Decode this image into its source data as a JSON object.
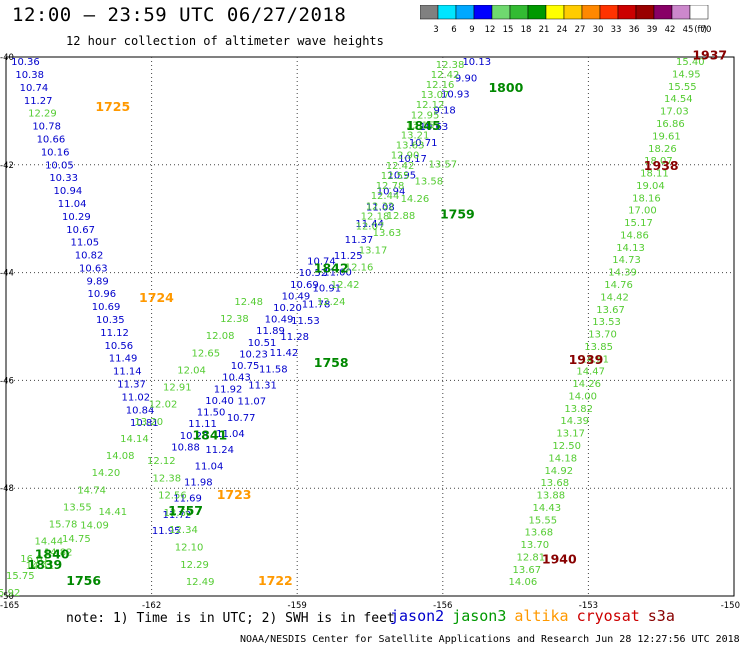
{
  "header": {
    "title": "12:00 – 23:59 UTC 06/27/2018",
    "subtitle": "12 hour collection of altimeter wave heights"
  },
  "colorbar": {
    "labels": [
      "3",
      "6",
      "9",
      "12",
      "15",
      "18",
      "21",
      "24",
      "27",
      "30",
      "33",
      "36",
      "39",
      "42",
      "45",
      "70"
    ],
    "unit": "(ft)",
    "colors": [
      "#808080",
      "#00e5ff",
      "#00a8ff",
      "#0000ff",
      "#6fd96f",
      "#33bb33",
      "#009900",
      "#ffff00",
      "#ffcc00",
      "#ff8800",
      "#ff3300",
      "#cc0000",
      "#990000",
      "#880066",
      "#cc88cc",
      "#ffffff"
    ]
  },
  "footer": {
    "note": "note: 1) Time is in UTC; 2) SWH is in feet",
    "credit": "NOAA/NESDIS Center for Satellite Applications and Research   Jun 28 12:27:56 UTC 2018"
  },
  "satellites": [
    {
      "name": "jason2",
      "color": "#0000cc"
    },
    {
      "name": "jason3",
      "color": "#009900"
    },
    {
      "name": "altika",
      "color": "#ff9900"
    },
    {
      "name": "cryosat",
      "color": "#cc0000"
    },
    {
      "name": "s3a",
      "color": "#880000"
    }
  ],
  "chart_data": {
    "type": "scatter",
    "title": "12:00 – 23:59 UTC 06/27/2018",
    "subtitle": "12 hour collection of altimeter wave heights",
    "xlabel": "",
    "ylabel": "",
    "xlim": [
      -165,
      -150
    ],
    "ylim": [
      -50,
      -40
    ],
    "x_ticks": [
      "-165",
      "-162",
      "-159",
      "-156",
      "-153",
      "-150"
    ],
    "y_ticks": [
      "-40",
      "-42",
      "-44",
      "-46",
      "-48",
      "-50"
    ],
    "grid": true,
    "colors": {
      "jason2": "#0000cc",
      "jason3_light": "#55cc33",
      "jason3_dark": "#008800",
      "altika": "#ff9900",
      "s3a": "#880000"
    },
    "time_labels": [
      {
        "text": "1725",
        "lon": -162.8,
        "lat": -41.0,
        "sat": "altika"
      },
      {
        "text": "1724",
        "lon": -161.9,
        "lat": -44.55,
        "sat": "altika"
      },
      {
        "text": "1723",
        "lon": -160.3,
        "lat": -48.2,
        "sat": "altika"
      },
      {
        "text": "1722",
        "lon": -159.45,
        "lat": -49.8,
        "sat": "altika"
      },
      {
        "text": "1800",
        "lon": -154.7,
        "lat": -40.65,
        "sat": "jason3"
      },
      {
        "text": "1845",
        "lon": -156.4,
        "lat": -41.35,
        "sat": "jason3"
      },
      {
        "text": "1759",
        "lon": -155.7,
        "lat": -43.0,
        "sat": "jason3"
      },
      {
        "text": "1842",
        "lon": -158.3,
        "lat": -44.0,
        "sat": "jason3"
      },
      {
        "text": "1758",
        "lon": -158.3,
        "lat": -45.75,
        "sat": "jason3"
      },
      {
        "text": "1841",
        "lon": -160.8,
        "lat": -47.1,
        "sat": "jason3"
      },
      {
        "text": "1757",
        "lon": -161.3,
        "lat": -48.5,
        "sat": "jason3"
      },
      {
        "text": "1840",
        "lon": -164.05,
        "lat": -49.3,
        "sat": "jason3"
      },
      {
        "text": "1839",
        "lon": -164.2,
        "lat": -49.5,
        "sat": "jason3"
      },
      {
        "text": "1756",
        "lon": -163.4,
        "lat": -49.8,
        "sat": "jason3"
      },
      {
        "text": "1937",
        "lon": -150.5,
        "lat": -40.05,
        "sat": "s3a"
      },
      {
        "text": "1938",
        "lon": -151.5,
        "lat": -42.1,
        "sat": "s3a"
      },
      {
        "text": "1939",
        "lon": -153.05,
        "lat": -45.7,
        "sat": "s3a"
      },
      {
        "text": "1940",
        "lon": -153.6,
        "lat": -49.4,
        "sat": "s3a"
      }
    ],
    "tracks": [
      {
        "name": "jason2-west",
        "sat": "jason2",
        "color": "#0000cc",
        "start": [
          -164.6,
          -40.15
        ],
        "end": [
          -162.15,
          -46.85
        ],
        "values": [
          "10.36",
          "10.38",
          "10.74",
          "11.27",
          "12.29",
          "10.78",
          "10.66",
          "10.16",
          "10.05",
          "10.33",
          "10.94",
          "11.04",
          "10.29",
          "10.67",
          "11.05",
          "10.82",
          "10.63",
          "9.89",
          "10.96",
          "10.69",
          "10.35",
          "11.12",
          "10.56",
          "11.49",
          "11.14",
          "11.37",
          "11.02",
          "10.84",
          "10.81"
        ],
        "value_colors": {
          "4": "#55cc33"
        }
      },
      {
        "name": "jason2-mid",
        "sat": "jason2",
        "color": "#0000cc",
        "start": [
          -158.5,
          -43.85
        ],
        "end": [
          -161.3,
          -47.3
        ],
        "values": [
          "10.74",
          "10.52",
          "10.69",
          "10.49",
          "10.20",
          "10.49",
          "11.89",
          "10.51",
          "10.23",
          "10.75",
          "10.43",
          "11.92",
          "10.40",
          "11.50",
          "11.11",
          "10.23",
          "10.88"
        ]
      },
      {
        "name": "jason2-diag",
        "sat": "jason2",
        "color": "#0000cc",
        "start": [
          -155.3,
          -40.15
        ],
        "end": [
          -161.7,
          -48.85
        ],
        "values": [
          "10.13",
          "9.90",
          "10.93",
          "9.18",
          "10.63",
          "10.71",
          "10.17",
          "10.95",
          "10.94",
          "11.08",
          "11.44",
          "11.37",
          "11.25",
          "11.00",
          "10.91",
          "11.78",
          "11.53",
          "11.28",
          "11.42",
          "11.58",
          "11.31",
          "11.07",
          "10.77",
          "11.04",
          "11.24",
          "11.04",
          "11.98",
          "11.69",
          "11.72",
          "11.95"
        ]
      },
      {
        "name": "jason3-nw",
        "sat": "jason3",
        "color": "#55cc33",
        "start": [
          -155.85,
          -40.2
        ],
        "end": [
          -157.5,
          -43.2
        ],
        "values": [
          "12.38",
          "12.42",
          "12.16",
          "13.07",
          "12.12",
          "12.95",
          "13.15",
          "13.21",
          "13.63",
          "12.90",
          "12.42",
          "12.55",
          "12.78",
          "12.44",
          "12.32",
          "12.18",
          "12.07"
        ]
      },
      {
        "name": "jason3-center",
        "sat": "jason3",
        "color": "#55cc33",
        "start": [
          -156.0,
          -42.05
        ],
        "end": [
          -158.3,
          -44.6
        ],
        "values": [
          "13.57",
          "13.58",
          "14.26",
          "12.88",
          "13.63",
          "13.17",
          "12.16",
          "12.42",
          "12.24"
        ]
      },
      {
        "name": "jason3-sw",
        "sat": "jason3",
        "color": "#55cc33",
        "start": [
          -160.0,
          -44.6
        ],
        "end": [
          -165.0,
          -50.0
        ],
        "values": [
          "12.48",
          "12.38",
          "12.08",
          "12.65",
          "12.04",
          "12.91",
          "12.02",
          "13.20",
          "14.14",
          "14.08",
          "14.20",
          "14.74",
          "13.55",
          "15.78",
          "14.44",
          "16.01",
          "15.75",
          "15.92"
        ]
      },
      {
        "name": "jason3-south",
        "sat": "jason3",
        "color": "#55cc33",
        "start": [
          -161.8,
          -47.55
        ],
        "end": [
          -161.0,
          -49.8
        ],
        "values": [
          "12.12",
          "12.38",
          "12.56",
          "12.60",
          "12.34",
          "12.10",
          "12.29",
          "12.49"
        ]
      },
      {
        "name": "jason3-lower-left",
        "sat": "jason3",
        "color": "#55cc33",
        "start": [
          -162.8,
          -48.5
        ],
        "end": [
          -164.3,
          -49.5
        ],
        "values": [
          "14.41",
          "14.09",
          "14.75",
          "14.82",
          "14.41"
        ]
      },
      {
        "name": "s3a-track",
        "sat": "s3a",
        "color": "#55cc33",
        "start": [
          -150.9,
          -40.15
        ],
        "end": [
          -154.35,
          -49.8
        ],
        "values": [
          "15.40",
          "14.95",
          "15.55",
          "14.54",
          "17.03",
          "16.86",
          "19.61",
          "18.26",
          "18.07",
          "18.11",
          "19.04",
          "18.16",
          "17.00",
          "15.17",
          "14.86",
          "14.13",
          "14.73",
          "14.39",
          "14.76",
          "14.42",
          "13.67",
          "13.53",
          "13.70",
          "13.85",
          "14.51",
          "14.47",
          "14.26",
          "14.00",
          "13.82",
          "14.39",
          "13.17",
          "12.50",
          "14.18",
          "14.92",
          "13.68",
          "13.88",
          "14.43",
          "15.55",
          "13.68",
          "13.70",
          "12.81",
          "13.67",
          "14.06"
        ]
      }
    ]
  }
}
